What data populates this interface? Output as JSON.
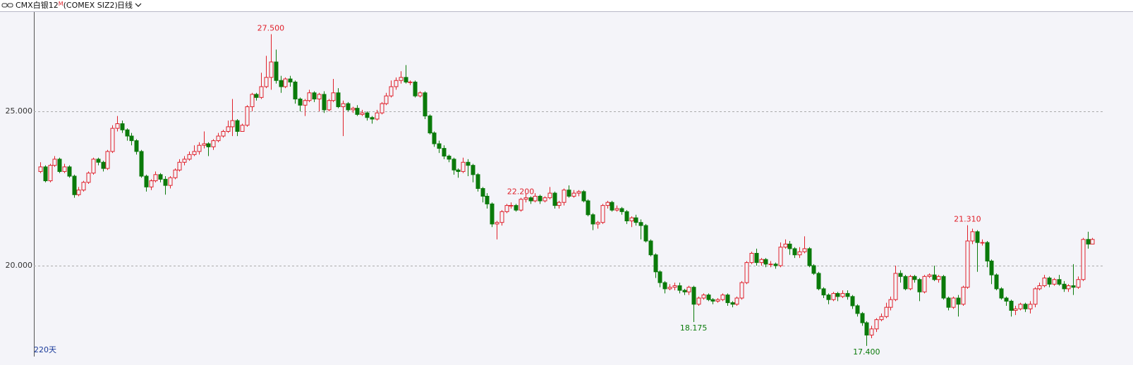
{
  "header": {
    "symbol": "CMX白银12",
    "superscript": "M",
    "code": "(COMEX SIZ2)",
    "period": "日线"
  },
  "footer": "220天",
  "chart_data": {
    "type": "candlestick",
    "up_color": "#e0202a",
    "down_color": "#0a7a0a",
    "background": "#f4f4f9",
    "ylim": [
      17.055,
      28.22
    ],
    "yticks": [
      {
        "value": 20,
        "label": "20.000"
      },
      {
        "value": 25,
        "label": "25.000"
      }
    ],
    "grid": true,
    "annotations": [
      {
        "value": 27.5,
        "label": "27.500"
      },
      {
        "value": 22.2,
        "label": "22.200"
      },
      {
        "value": 18.175,
        "label": "18.175"
      },
      {
        "value": 17.4,
        "label": "17.400"
      },
      {
        "value": 21.31,
        "label": "21.310"
      }
    ],
    "open": [
      23.05,
      23.2,
      22.75,
      23.25,
      23.45,
      23.05,
      23.2,
      22.9,
      22.3,
      22.45,
      22.7,
      23.0,
      23.45,
      23.35,
      23.15,
      23.7,
      24.45,
      24.6,
      24.4,
      24.2,
      24.05,
      23.7,
      22.9,
      22.55,
      22.75,
      22.95,
      22.8,
      22.6,
      22.85,
      23.1,
      23.35,
      23.45,
      23.6,
      23.7,
      23.9,
      23.95,
      23.85,
      24.05,
      24.2,
      24.35,
      24.5,
      24.7,
      24.35,
      24.55,
      25.15,
      25.55,
      25.45,
      25.8,
      26.1,
      26.6,
      26.0,
      25.8,
      26.05,
      25.95,
      25.4,
      25.2,
      25.35,
      25.6,
      25.4,
      25.55,
      25.05,
      25.35,
      25.6,
      25.15,
      25.25,
      25.05,
      25.1,
      24.9,
      24.95,
      24.8,
      24.75,
      24.95,
      25.25,
      25.5,
      25.8,
      26.0,
      26.1,
      25.95,
      25.95,
      25.5,
      25.6,
      24.85,
      24.3,
      23.95,
      23.8,
      23.55,
      23.45,
      23.1,
      23.05,
      23.35,
      23.25,
      22.95,
      22.5,
      22.25,
      22.0,
      21.35,
      21.4,
      21.75,
      21.95,
      21.95,
      21.8,
      22.15,
      22.2,
      22.1,
      22.25,
      22.1,
      22.2,
      22.35,
      21.95,
      22.05,
      22.45,
      22.25,
      22.35,
      22.4,
      22.1,
      21.65,
      21.35,
      21.4,
      21.95,
      22.05,
      21.8,
      21.85,
      21.75,
      21.45,
      21.55,
      21.4,
      21.3,
      20.8,
      20.35,
      19.8,
      19.45,
      19.25,
      19.3,
      19.35,
      19.2,
      19.15,
      19.3,
      18.75,
      18.95,
      19.05,
      18.9,
      18.85,
      18.9,
      19.05,
      18.8,
      18.75,
      18.95,
      19.45,
      20.1,
      20.4,
      20.1,
      20.2,
      20.05,
      20.05,
      20.0,
      20.6,
      20.7,
      20.55,
      20.35,
      20.45,
      20.55,
      20.0,
      19.75,
      19.25,
      19.05,
      18.9,
      19.1,
      19.0,
      19.1,
      19.0,
      18.7,
      18.45,
      18.15,
      17.75,
      17.95,
      18.25,
      18.35,
      18.65,
      18.9,
      19.75,
      19.65,
      19.25,
      19.65,
      19.55,
      19.15,
      19.65,
      19.7,
      19.55,
      19.65,
      18.95,
      18.65,
      18.95,
      18.75,
      19.3,
      20.8,
      21.1,
      20.75,
      20.75,
      20.15,
      19.7,
      19.25,
      18.95,
      18.85,
      18.55,
      18.6,
      18.75,
      18.6,
      18.75,
      19.25,
      19.35,
      19.6,
      19.4,
      19.55,
      19.4,
      19.25,
      19.35,
      19.3,
      19.55,
      20.85,
      20.7
    ],
    "high": [
      23.35,
      23.25,
      23.3,
      23.55,
      23.5,
      23.3,
      23.25,
      22.95,
      22.55,
      22.75,
      23.05,
      23.5,
      23.5,
      23.4,
      23.75,
      24.55,
      24.85,
      24.7,
      24.45,
      24.3,
      24.1,
      23.75,
      22.95,
      22.8,
      23.05,
      23.0,
      22.9,
      22.9,
      23.15,
      23.45,
      23.55,
      23.7,
      23.9,
      24.0,
      24.35,
      24.0,
      24.1,
      24.3,
      24.4,
      24.7,
      25.4,
      24.75,
      24.6,
      25.2,
      25.6,
      25.6,
      26.25,
      26.8,
      27.5,
      27.0,
      26.15,
      26.1,
      26.15,
      26.0,
      25.45,
      25.4,
      25.7,
      25.65,
      25.6,
      25.65,
      25.4,
      26.05,
      25.75,
      25.35,
      25.3,
      25.15,
      25.2,
      25.05,
      25.0,
      24.85,
      25.05,
      25.3,
      25.6,
      26.0,
      26.1,
      26.3,
      26.5,
      26.0,
      26.0,
      25.65,
      25.65,
      24.9,
      24.35,
      24.05,
      23.9,
      23.6,
      23.5,
      23.15,
      23.5,
      23.45,
      23.3,
      23.0,
      22.55,
      22.35,
      22.05,
      21.45,
      21.8,
      22.0,
      22.05,
      22.0,
      22.2,
      22.35,
      22.25,
      22.35,
      22.3,
      22.25,
      22.55,
      22.4,
      22.1,
      22.5,
      22.6,
      22.45,
      22.45,
      22.45,
      22.15,
      21.7,
      21.45,
      22.0,
      22.1,
      22.1,
      21.95,
      21.9,
      21.8,
      21.6,
      21.65,
      21.5,
      21.35,
      20.85,
      20.4,
      19.85,
      19.5,
      19.4,
      19.45,
      19.45,
      19.25,
      19.35,
      19.35,
      19.0,
      19.1,
      19.1,
      18.95,
      18.95,
      19.1,
      19.1,
      18.85,
      19.0,
      19.5,
      20.15,
      20.45,
      20.55,
      20.25,
      20.25,
      20.15,
      20.1,
      20.75,
      20.85,
      20.8,
      20.6,
      20.6,
      20.95,
      20.6,
      20.05,
      19.8,
      19.3,
      19.1,
      19.15,
      19.15,
      19.2,
      19.2,
      19.05,
      18.75,
      18.5,
      18.2,
      18.05,
      18.3,
      18.45,
      18.8,
      19.0,
      20.0,
      19.85,
      19.7,
      19.7,
      19.7,
      19.6,
      19.7,
      19.75,
      20.0,
      19.7,
      19.7,
      19.0,
      19.0,
      19.05,
      19.35,
      21.31,
      21.2,
      21.15,
      20.85,
      20.8,
      20.2,
      19.75,
      19.3,
      19.0,
      18.9,
      18.7,
      18.8,
      18.8,
      18.85,
      19.3,
      19.45,
      19.7,
      19.65,
      19.6,
      19.7,
      19.5,
      19.4,
      20.05,
      19.65,
      20.9,
      21.1,
      20.9
    ],
    "low": [
      23.0,
      22.7,
      22.7,
      23.2,
      23.0,
      23.0,
      22.85,
      22.2,
      22.25,
      22.4,
      22.65,
      22.95,
      23.25,
      23.05,
      23.1,
      23.65,
      24.35,
      24.3,
      24.05,
      23.9,
      23.6,
      22.85,
      22.4,
      22.45,
      22.7,
      22.7,
      22.3,
      22.5,
      22.8,
      23.05,
      23.25,
      23.4,
      23.55,
      23.6,
      23.8,
      23.55,
      23.75,
      24.0,
      24.15,
      24.3,
      24.2,
      24.2,
      24.35,
      24.5,
      25.0,
      25.35,
      25.4,
      25.75,
      25.7,
      25.9,
      25.6,
      25.75,
      25.8,
      25.25,
      25.0,
      24.85,
      25.3,
      25.3,
      25.0,
      24.95,
      25.0,
      25.3,
      25.1,
      24.2,
      25.0,
      24.95,
      24.85,
      24.85,
      24.7,
      24.6,
      24.7,
      24.9,
      25.2,
      25.45,
      25.7,
      25.9,
      25.9,
      25.85,
      25.45,
      25.45,
      24.75,
      24.25,
      23.85,
      23.65,
      23.45,
      23.35,
      22.95,
      22.85,
      23.0,
      22.9,
      22.7,
      22.4,
      22.05,
      21.85,
      21.25,
      20.85,
      21.3,
      21.7,
      21.85,
      21.75,
      21.75,
      22.05,
      22.0,
      22.05,
      22.0,
      22.05,
      22.15,
      21.85,
      21.85,
      21.95,
      22.2,
      22.2,
      22.25,
      22.05,
      21.6,
      21.15,
      21.2,
      21.35,
      21.85,
      21.75,
      21.75,
      21.65,
      21.35,
      21.25,
      21.3,
      20.85,
      20.75,
      20.3,
      19.6,
      19.3,
      19.1,
      19.2,
      19.2,
      19.1,
      19.05,
      19.05,
      18.175,
      18.7,
      18.9,
      18.85,
      18.75,
      18.8,
      18.85,
      18.7,
      18.65,
      18.7,
      18.9,
      19.4,
      20.05,
      20.0,
      20.0,
      19.95,
      19.95,
      19.9,
      19.95,
      20.55,
      20.35,
      20.25,
      20.25,
      20.4,
      19.95,
      19.7,
      19.2,
      18.95,
      18.75,
      18.85,
      18.85,
      18.95,
      18.9,
      18.6,
      18.35,
      18.05,
      17.4,
      17.65,
      17.85,
      18.2,
      18.3,
      18.55,
      18.85,
      19.45,
      19.2,
      19.2,
      19.45,
      18.85,
      19.1,
      19.6,
      19.5,
      19.45,
      18.9,
      18.55,
      18.6,
      18.35,
      18.7,
      19.25,
      20.7,
      19.8,
      20.65,
      19.95,
      19.4,
      19.2,
      18.9,
      18.7,
      18.35,
      18.4,
      18.55,
      18.5,
      18.45,
      18.65,
      19.2,
      19.3,
      19.3,
      19.35,
      19.35,
      19.15,
      19.15,
      19.05,
      19.25,
      19.5,
      20.55,
      20.8
    ],
    "close": [
      23.2,
      22.75,
      23.25,
      23.45,
      23.05,
      23.2,
      22.9,
      22.3,
      22.45,
      22.7,
      23.0,
      23.45,
      23.35,
      23.15,
      23.7,
      24.45,
      24.6,
      24.4,
      24.2,
      24.05,
      23.7,
      22.9,
      22.55,
      22.75,
      22.95,
      22.8,
      22.6,
      22.85,
      23.1,
      23.35,
      23.45,
      23.6,
      23.7,
      23.9,
      23.95,
      23.85,
      24.05,
      24.2,
      24.35,
      24.5,
      24.7,
      24.35,
      24.55,
      25.15,
      25.55,
      25.45,
      25.8,
      26.1,
      26.6,
      26.0,
      25.8,
      26.05,
      25.95,
      25.4,
      25.2,
      25.35,
      25.6,
      25.4,
      25.55,
      25.05,
      25.35,
      25.6,
      25.15,
      25.25,
      25.05,
      25.1,
      24.9,
      24.95,
      24.8,
      24.75,
      24.95,
      25.25,
      25.5,
      25.8,
      26.0,
      26.1,
      25.95,
      25.95,
      25.5,
      25.6,
      24.85,
      24.3,
      23.95,
      23.8,
      23.55,
      23.45,
      23.1,
      23.05,
      23.35,
      23.25,
      22.95,
      22.5,
      22.25,
      22.0,
      21.35,
      21.4,
      21.75,
      21.95,
      21.95,
      21.8,
      22.15,
      22.2,
      22.1,
      22.25,
      22.1,
      22.2,
      22.35,
      21.95,
      22.05,
      22.45,
      22.25,
      22.35,
      22.4,
      22.1,
      21.65,
      21.35,
      21.4,
      21.95,
      22.05,
      21.8,
      21.85,
      21.75,
      21.45,
      21.55,
      21.4,
      21.3,
      20.8,
      20.35,
      19.8,
      19.45,
      19.25,
      19.3,
      19.35,
      19.2,
      19.15,
      19.3,
      18.75,
      18.95,
      19.05,
      18.9,
      18.85,
      18.9,
      19.05,
      18.8,
      18.75,
      18.95,
      19.45,
      20.1,
      20.4,
      20.1,
      20.2,
      20.05,
      20.05,
      20.0,
      20.6,
      20.7,
      20.55,
      20.35,
      20.45,
      20.55,
      20.0,
      19.75,
      19.25,
      19.05,
      18.9,
      19.1,
      19.0,
      19.1,
      19.0,
      18.7,
      18.45,
      18.15,
      17.75,
      17.95,
      18.25,
      18.35,
      18.65,
      18.9,
      19.75,
      19.65,
      19.25,
      19.65,
      19.55,
      19.15,
      19.65,
      19.7,
      19.55,
      19.65,
      18.95,
      18.65,
      18.95,
      18.75,
      19.3,
      20.8,
      21.1,
      20.75,
      20.75,
      20.15,
      19.7,
      19.25,
      18.95,
      18.85,
      18.55,
      18.6,
      18.75,
      18.6,
      18.75,
      19.25,
      19.35,
      19.6,
      19.4,
      19.55,
      19.4,
      19.25,
      19.35,
      19.3,
      19.55,
      20.85,
      20.7,
      20.85
    ]
  }
}
